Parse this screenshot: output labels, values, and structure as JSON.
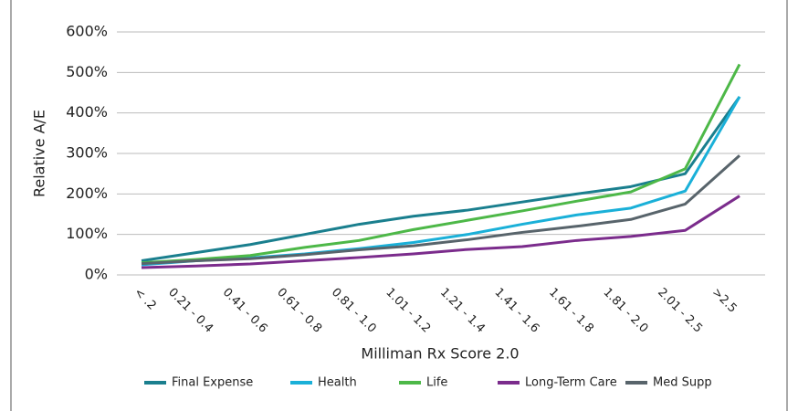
{
  "chart_data": {
    "type": "line",
    "xlabel": "Milliman Rx Score 2.0",
    "ylabel": "Relative A/E",
    "categories": [
      "< .2",
      "0.21 - 0.4",
      "0.41 - 0.6",
      "0.61 - 0.8",
      "0.81 - 1.0",
      "1.01 - 1.2",
      "1.21 - 1.4",
      "1.41 - 1.6",
      "1.61 - 1.8",
      "1.81 - 2.0",
      "2.01 - 2.5",
      ">2.5"
    ],
    "series": [
      {
        "name": "Final Expense",
        "color": "#1a7f8e",
        "values": [
          35,
          55,
          75,
          100,
          125,
          145,
          160,
          180,
          200,
          218,
          250,
          440
        ]
      },
      {
        "name": "Health",
        "color": "#1ab0d8",
        "values": [
          25,
          35,
          42,
          52,
          65,
          80,
          100,
          125,
          148,
          165,
          207,
          440
        ]
      },
      {
        "name": "Life",
        "color": "#4db848",
        "values": [
          30,
          38,
          48,
          68,
          85,
          112,
          135,
          158,
          182,
          205,
          262,
          520
        ]
      },
      {
        "name": "Long-Term Care",
        "color": "#7b2c8c",
        "values": [
          18,
          22,
          27,
          35,
          43,
          52,
          63,
          70,
          85,
          95,
          110,
          195
        ]
      },
      {
        "name": "Med Supp",
        "color": "#58646b",
        "values": [
          28,
          35,
          40,
          50,
          62,
          72,
          87,
          105,
          120,
          137,
          175,
          295
        ]
      }
    ],
    "ylim": [
      0,
      600
    ],
    "yticks": [
      {
        "value": 0,
        "label": "0%"
      },
      {
        "value": 100,
        "label": "100%"
      },
      {
        "value": 200,
        "label": "200%"
      },
      {
        "value": 300,
        "label": "300%"
      },
      {
        "value": 400,
        "label": "400%"
      },
      {
        "value": 500,
        "label": "500%"
      },
      {
        "value": 600,
        "label": "600%"
      }
    ],
    "grid": true
  }
}
